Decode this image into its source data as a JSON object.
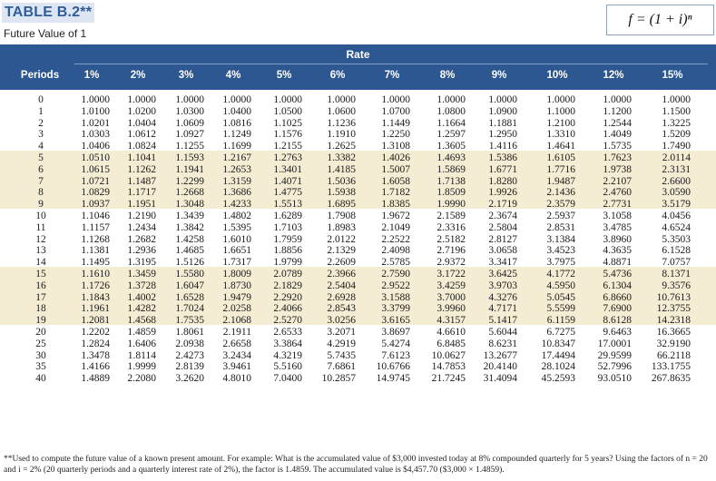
{
  "table": {
    "title": "TABLE B.2**",
    "subtitle": "Future Value of 1",
    "formula": "f = (1 + i)ⁿ",
    "rate_label": "Rate",
    "periods_header": "Periods",
    "rate_headers": [
      "1%",
      "2%",
      "3%",
      "4%",
      "5%",
      "6%",
      "7%",
      "8%",
      "9%",
      "10%",
      "12%",
      "15%"
    ],
    "rows": [
      {
        "period": "0",
        "values": [
          "1.0000",
          "1.0000",
          "1.0000",
          "1.0000",
          "1.0000",
          "1.0000",
          "1.0000",
          "1.0000",
          "1.0000",
          "1.0000",
          "1.0000",
          "1.0000"
        ]
      },
      {
        "period": "1",
        "values": [
          "1.0100",
          "1.0200",
          "1.0300",
          "1.0400",
          "1.0500",
          "1.0600",
          "1.0700",
          "1.0800",
          "1.0900",
          "1.1000",
          "1.1200",
          "1.1500"
        ]
      },
      {
        "period": "2",
        "values": [
          "1.0201",
          "1.0404",
          "1.0609",
          "1.0816",
          "1.1025",
          "1.1236",
          "1.1449",
          "1.1664",
          "1.1881",
          "1.2100",
          "1.2544",
          "1.3225"
        ]
      },
      {
        "period": "3",
        "values": [
          "1.0303",
          "1.0612",
          "1.0927",
          "1.1249",
          "1.1576",
          "1.1910",
          "1.2250",
          "1.2597",
          "1.2950",
          "1.3310",
          "1.4049",
          "1.5209"
        ]
      },
      {
        "period": "4",
        "values": [
          "1.0406",
          "1.0824",
          "1.1255",
          "1.1699",
          "1.2155",
          "1.2625",
          "1.3108",
          "1.3605",
          "1.4116",
          "1.4641",
          "1.5735",
          "1.7490"
        ]
      },
      {
        "period": "5",
        "values": [
          "1.0510",
          "1.1041",
          "1.1593",
          "1.2167",
          "1.2763",
          "1.3382",
          "1.4026",
          "1.4693",
          "1.5386",
          "1.6105",
          "1.7623",
          "2.0114"
        ]
      },
      {
        "period": "6",
        "values": [
          "1.0615",
          "1.1262",
          "1.1941",
          "1.2653",
          "1.3401",
          "1.4185",
          "1.5007",
          "1.5869",
          "1.6771",
          "1.7716",
          "1.9738",
          "2.3131"
        ]
      },
      {
        "period": "7",
        "values": [
          "1.0721",
          "1.1487",
          "1.2299",
          "1.3159",
          "1.4071",
          "1.5036",
          "1.6058",
          "1.7138",
          "1.8280",
          "1.9487",
          "2.2107",
          "2.6600"
        ]
      },
      {
        "period": "8",
        "values": [
          "1.0829",
          "1.1717",
          "1.2668",
          "1.3686",
          "1.4775",
          "1.5938",
          "1.7182",
          "1.8509",
          "1.9926",
          "2.1436",
          "2.4760",
          "3.0590"
        ]
      },
      {
        "period": "9",
        "values": [
          "1.0937",
          "1.1951",
          "1.3048",
          "1.4233",
          "1.5513",
          "1.6895",
          "1.8385",
          "1.9990",
          "2.1719",
          "2.3579",
          "2.7731",
          "3.5179"
        ]
      },
      {
        "period": "10",
        "values": [
          "1.1046",
          "1.2190",
          "1.3439",
          "1.4802",
          "1.6289",
          "1.7908",
          "1.9672",
          "2.1589",
          "2.3674",
          "2.5937",
          "3.1058",
          "4.0456"
        ]
      },
      {
        "period": "11",
        "values": [
          "1.1157",
          "1.2434",
          "1.3842",
          "1.5395",
          "1.7103",
          "1.8983",
          "2.1049",
          "2.3316",
          "2.5804",
          "2.8531",
          "3.4785",
          "4.6524"
        ]
      },
      {
        "period": "12",
        "values": [
          "1.1268",
          "1.2682",
          "1.4258",
          "1.6010",
          "1.7959",
          "2.0122",
          "2.2522",
          "2.5182",
          "2.8127",
          "3.1384",
          "3.8960",
          "5.3503"
        ]
      },
      {
        "period": "13",
        "values": [
          "1.1381",
          "1.2936",
          "1.4685",
          "1.6651",
          "1.8856",
          "2.1329",
          "2.4098",
          "2.7196",
          "3.0658",
          "3.4523",
          "4.3635",
          "6.1528"
        ]
      },
      {
        "period": "14",
        "values": [
          "1.1495",
          "1.3195",
          "1.5126",
          "1.7317",
          "1.9799",
          "2.2609",
          "2.5785",
          "2.9372",
          "3.3417",
          "3.7975",
          "4.8871",
          "7.0757"
        ]
      },
      {
        "period": "15",
        "values": [
          "1.1610",
          "1.3459",
          "1.5580",
          "1.8009",
          "2.0789",
          "2.3966",
          "2.7590",
          "3.1722",
          "3.6425",
          "4.1772",
          "5.4736",
          "8.1371"
        ]
      },
      {
        "period": "16",
        "values": [
          "1.1726",
          "1.3728",
          "1.6047",
          "1.8730",
          "2.1829",
          "2.5404",
          "2.9522",
          "3.4259",
          "3.9703",
          "4.5950",
          "6.1304",
          "9.3576"
        ]
      },
      {
        "period": "17",
        "values": [
          "1.1843",
          "1.4002",
          "1.6528",
          "1.9479",
          "2.2920",
          "2.6928",
          "3.1588",
          "3.7000",
          "4.3276",
          "5.0545",
          "6.8660",
          "10.7613"
        ]
      },
      {
        "period": "18",
        "values": [
          "1.1961",
          "1.4282",
          "1.7024",
          "2.0258",
          "2.4066",
          "2.8543",
          "3.3799",
          "3.9960",
          "4.7171",
          "5.5599",
          "7.6900",
          "12.3755"
        ]
      },
      {
        "period": "19",
        "values": [
          "1.2081",
          "1.4568",
          "1.7535",
          "2.1068",
          "2.5270",
          "3.0256",
          "3.6165",
          "4.3157",
          "5.1417",
          "6.1159",
          "8.6128",
          "14.2318"
        ]
      },
      {
        "period": "20",
        "values": [
          "1.2202",
          "1.4859",
          "1.8061",
          "2.1911",
          "2.6533",
          "3.2071",
          "3.8697",
          "4.6610",
          "5.6044",
          "6.7275",
          "9.6463",
          "16.3665"
        ]
      },
      {
        "period": "25",
        "values": [
          "1.2824",
          "1.6406",
          "2.0938",
          "2.6658",
          "3.3864",
          "4.2919",
          "5.4274",
          "6.8485",
          "8.6231",
          "10.8347",
          "17.0001",
          "32.9190"
        ]
      },
      {
        "period": "30",
        "values": [
          "1.3478",
          "1.8114",
          "2.4273",
          "3.2434",
          "4.3219",
          "5.7435",
          "7.6123",
          "10.0627",
          "13.2677",
          "17.4494",
          "29.9599",
          "66.2118"
        ]
      },
      {
        "period": "35",
        "values": [
          "1.4166",
          "1.9999",
          "2.8139",
          "3.9461",
          "5.5160",
          "7.6861",
          "10.6766",
          "14.7853",
          "20.4140",
          "28.1024",
          "52.7996",
          "133.1755"
        ]
      },
      {
        "period": "40",
        "values": [
          "1.4889",
          "2.2080",
          "3.2620",
          "4.8010",
          "7.0400",
          "10.2857",
          "14.9745",
          "21.7245",
          "31.4094",
          "45.2593",
          "93.0510",
          "267.8635"
        ]
      }
    ],
    "footnote": "**Used to compute the future value of a known present amount. For example: What is the accumulated value of $3,000 invested today at 8% compounded quarterly for 5 years? Using the factors of n = 20 and i = 2% (20 quarterly periods and a quarterly interest rate of 2%), the factor is 1.4859. The accumulated value is $4,457.70 ($3,000 × 1.4859)."
  }
}
